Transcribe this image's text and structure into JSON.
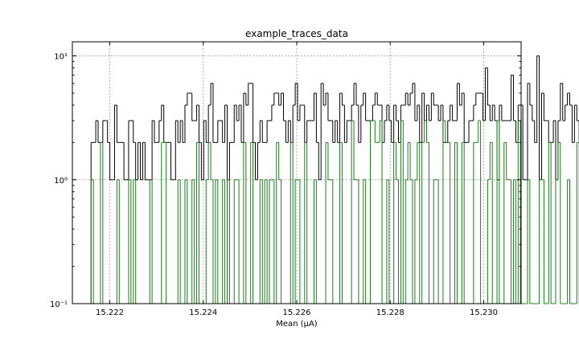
{
  "chart_data": {
    "type": "histogram-step",
    "title": "example_traces_data",
    "xlabel": "Mean (μA)",
    "ylabel": "",
    "xlim": [
      15.2212,
      15.2308
    ],
    "ylim": [
      0.1,
      13
    ],
    "y_scale": "log",
    "grid": true,
    "x_ticks": [
      15.222,
      15.224,
      15.226,
      15.228,
      15.23
    ],
    "x_tick_labels": [
      "15.222",
      "15.224",
      "15.226",
      "15.228",
      "15.230"
    ],
    "y_ticks": [
      0.1,
      1,
      10
    ],
    "y_tick_labels": [
      "10⁻¹",
      "10⁰",
      "10¹"
    ],
    "bin_start": 15.2216,
    "bin_width": 5.02e-05,
    "series": [
      {
        "color": "#000000",
        "values": [
          2,
          2,
          3,
          2,
          2,
          3,
          3,
          2,
          1,
          1,
          4,
          2,
          2,
          2,
          1,
          1,
          3,
          3,
          2,
          1,
          2,
          1,
          2,
          1,
          1,
          1,
          3,
          2,
          2,
          3,
          4,
          2,
          2,
          2,
          1,
          1,
          3,
          2,
          3,
          2,
          4,
          5,
          5,
          3,
          3,
          4,
          2,
          1,
          3,
          2,
          4,
          6,
          2,
          2,
          3,
          3,
          2,
          4,
          1,
          2,
          2,
          4,
          3,
          4,
          2,
          5,
          4,
          6,
          6,
          2,
          1,
          2,
          3,
          2,
          2,
          3,
          3,
          4,
          5,
          5,
          4,
          5,
          3,
          2,
          3,
          2,
          4,
          6,
          3,
          4,
          4,
          2,
          3,
          3,
          3,
          5,
          2,
          1,
          6,
          4,
          5,
          3,
          3,
          2,
          3,
          2,
          5,
          4,
          2,
          3,
          3,
          4,
          6,
          4,
          2,
          4,
          5,
          3,
          3,
          3,
          4,
          5,
          4,
          4,
          2,
          3,
          4,
          3,
          2,
          4,
          3,
          2,
          4,
          4,
          5,
          4,
          5,
          6,
          3,
          4,
          2,
          5,
          3,
          4,
          3,
          5,
          4,
          4,
          3,
          4,
          2,
          2,
          3,
          4,
          3,
          3,
          6,
          4,
          5,
          2,
          2,
          3,
          3,
          4,
          5,
          5,
          5,
          3,
          8,
          4,
          3,
          4,
          3,
          1,
          4,
          3,
          3,
          3,
          3,
          7,
          3,
          2,
          4,
          4,
          1,
          1,
          6,
          4,
          3,
          2,
          10,
          1,
          5,
          3,
          3,
          2,
          2,
          3,
          1,
          3,
          6,
          3,
          4,
          5,
          4,
          2,
          4,
          3,
          2,
          1,
          3,
          3,
          2,
          2,
          2,
          3,
          1,
          1,
          1,
          1,
          1
        ],
        "bars": []
      },
      {
        "color": "#1a7f1a",
        "values": [
          1,
          0,
          0,
          0,
          2,
          0,
          0,
          0,
          0,
          0,
          0,
          1,
          0,
          0,
          0,
          0,
          1,
          0,
          1,
          0,
          0,
          0,
          0,
          0,
          0,
          1,
          0,
          0,
          0,
          0,
          2,
          2,
          0,
          0,
          0,
          0,
          0,
          1,
          0,
          0,
          1,
          0,
          0,
          1,
          0,
          2,
          0,
          0,
          0,
          1,
          2,
          1,
          0,
          1,
          0,
          0,
          1,
          0,
          1,
          0,
          0,
          1,
          1,
          0,
          0,
          2,
          0,
          0,
          2,
          0,
          0,
          0,
          1,
          0,
          1,
          0,
          1,
          1,
          0,
          2,
          1,
          0,
          0,
          0,
          0,
          2,
          0,
          1,
          1,
          0,
          0,
          2,
          0,
          0,
          0,
          1,
          0,
          0,
          0,
          0,
          2,
          1,
          1,
          0,
          0,
          0,
          2,
          0,
          0,
          0,
          0,
          3,
          1,
          1,
          0,
          0,
          1,
          0,
          0,
          3,
          3,
          2,
          2,
          3,
          0,
          0,
          1,
          0,
          0,
          2,
          1,
          0,
          3,
          0,
          1,
          2,
          1,
          0,
          1,
          2,
          0,
          2,
          3,
          2,
          0,
          0,
          1,
          1,
          0,
          0,
          3,
          2,
          2,
          0,
          0,
          2,
          0,
          0,
          2,
          0,
          0,
          0,
          0,
          2,
          2,
          3,
          0,
          0,
          0,
          1,
          2,
          0,
          0,
          3,
          0,
          0,
          2,
          1,
          1,
          0,
          1,
          0,
          3,
          0,
          0,
          0,
          1,
          0,
          0,
          0,
          0,
          1,
          1,
          0,
          0,
          2,
          0,
          0,
          1,
          2,
          0,
          0,
          0,
          1,
          0,
          0,
          0,
          2,
          0,
          0,
          0,
          0,
          0,
          0,
          0,
          0,
          0,
          0,
          0,
          0,
          0,
          0,
          0,
          0,
          0
        ]
      }
    ]
  }
}
